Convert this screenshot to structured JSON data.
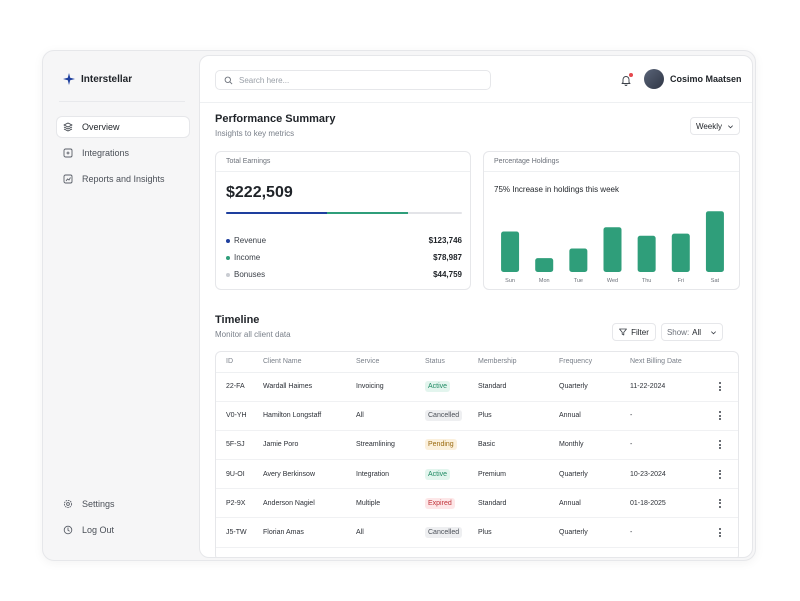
{
  "brand": {
    "name": "Interstellar"
  },
  "nav": {
    "items": [
      {
        "label": "Overview",
        "icon": "layers-icon"
      },
      {
        "label": "Integrations",
        "icon": "grid-icon"
      },
      {
        "label": "Reports and Insights",
        "icon": "chart-icon"
      }
    ],
    "settings_label": "Settings",
    "logout_label": "Log Out"
  },
  "header": {
    "search_placeholder": "Search here...",
    "user_name": "Cosimo Maatsen"
  },
  "performance": {
    "title": "Performance Summary",
    "subtitle": "Insights to key metrics",
    "period": "Weekly"
  },
  "earnings": {
    "label": "Total Earnings",
    "total": "$222,509",
    "progress": [
      {
        "fraction": 0.43,
        "color": "#1e3f9e"
      },
      {
        "fraction": 0.34,
        "color": "#2f9e7a"
      }
    ],
    "legend": [
      {
        "label": "Revenue",
        "value": "$123,746",
        "color": "#1e3f9e"
      },
      {
        "label": "Income",
        "value": "$78,987",
        "color": "#2f9e7a"
      },
      {
        "label": "Bonuses",
        "value": "$44,759",
        "color": "#c9ccd2"
      }
    ]
  },
  "holdings": {
    "label": "Percentage Holdings",
    "text": "75% Increase in holdings this week"
  },
  "chart_data": {
    "type": "bar",
    "categories": [
      "Sun",
      "Mon",
      "Tue",
      "Wed",
      "Thu",
      "Fri",
      "Sat"
    ],
    "values": [
      38,
      13,
      22,
      42,
      34,
      36,
      57
    ],
    "ylim": [
      0,
      60
    ],
    "color": "#2f9e7a",
    "grid": false
  },
  "timeline": {
    "title": "Timeline",
    "subtitle": "Monitor all client data",
    "filter_label": "Filter",
    "show_label": "Show:",
    "show_value": "All",
    "columns": [
      "ID",
      "Client Name",
      "Service",
      "Status",
      "Membership",
      "Frequency",
      "Next Billing Date"
    ],
    "rows": [
      {
        "id": "22-FA",
        "name": "Wardall Haimes",
        "service": "Invoicing",
        "status": "Active",
        "membership": "Standard",
        "frequency": "Quarterly",
        "next": "11-22-2024"
      },
      {
        "id": "V0-YH",
        "name": "Hamilton Longstaff",
        "service": "All",
        "status": "Cancelled",
        "membership": "Plus",
        "frequency": "Annual",
        "next": "-"
      },
      {
        "id": "5F-SJ",
        "name": "Jamie Poro",
        "service": "Streamlining",
        "status": "Pending",
        "membership": "Basic",
        "frequency": "Monthly",
        "next": "-"
      },
      {
        "id": "9U-OI",
        "name": "Avery Berkinsow",
        "service": "Integration",
        "status": "Active",
        "membership": "Premium",
        "frequency": "Quarterly",
        "next": "10-23-2024"
      },
      {
        "id": "P2-9X",
        "name": "Anderson Nagiel",
        "service": "Multiple",
        "status": "Expired",
        "membership": "Standard",
        "frequency": "Annual",
        "next": "01-18-2025"
      },
      {
        "id": "J5-TW",
        "name": "Florian Amas",
        "service": "All",
        "status": "Cancelled",
        "membership": "Plus",
        "frequency": "Quarterly",
        "next": "-"
      }
    ],
    "status_colors": {
      "Active": {
        "bg": "#e3f5ee",
        "fg": "#1f8a63"
      },
      "Cancelled": {
        "bg": "#eeeff1",
        "fg": "#4b5058"
      },
      "Pending": {
        "bg": "#fbf0dc",
        "fg": "#9a6a10"
      },
      "Expired": {
        "bg": "#fde7e8",
        "fg": "#c0343b"
      }
    }
  }
}
